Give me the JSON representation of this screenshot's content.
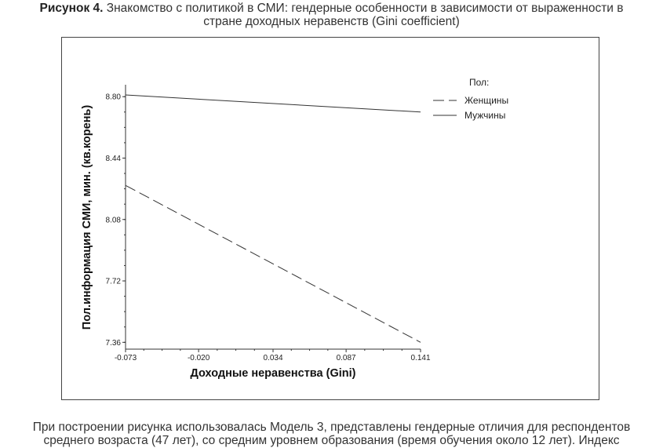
{
  "figure": {
    "caption_lead": "Рисунок 4.",
    "caption_line1": "Знакомство с политикой в СМИ: гендерные особенности в зависимости от выраженности в",
    "caption_line2": "стране доходных неравенств (Gini coefficient)",
    "note_line1": "При построении рисунка использовалась Модель 3, представлены гендерные отличия для респондентов",
    "note_line2": "среднего возраста (47 лет), со средним уровнем образования (время обучения около 12 лет). Индекс"
  },
  "chart_data": {
    "type": "line",
    "xlabel": "Доходные неравенства (Gini)",
    "ylabel": "Пол.информация СМИ, мин. (кв.корень)",
    "xlim": [
      -0.073,
      0.141
    ],
    "ylim": [
      7.32,
      8.87
    ],
    "x_ticks": [
      "-0.073",
      "-0.020",
      "0.034",
      "0.087",
      "0.141"
    ],
    "x_tick_values": [
      -0.073,
      -0.02,
      0.034,
      0.087,
      0.141
    ],
    "y_ticks": [
      "7.36",
      "7.72",
      "8.08",
      "8.44",
      "8.80"
    ],
    "y_tick_values": [
      7.36,
      7.72,
      8.08,
      8.44,
      8.8
    ],
    "legend_title": "Пол:",
    "legend_position": "top-right",
    "grid": false,
    "series": [
      {
        "name": "Женщины",
        "style": "dashed",
        "color": "#333333",
        "x": [
          -0.073,
          0.141
        ],
        "y": [
          8.28,
          7.36
        ]
      },
      {
        "name": "Мужчины",
        "style": "solid",
        "color": "#333333",
        "x": [
          -0.073,
          0.141
        ],
        "y": [
          8.81,
          8.71
        ]
      }
    ]
  }
}
